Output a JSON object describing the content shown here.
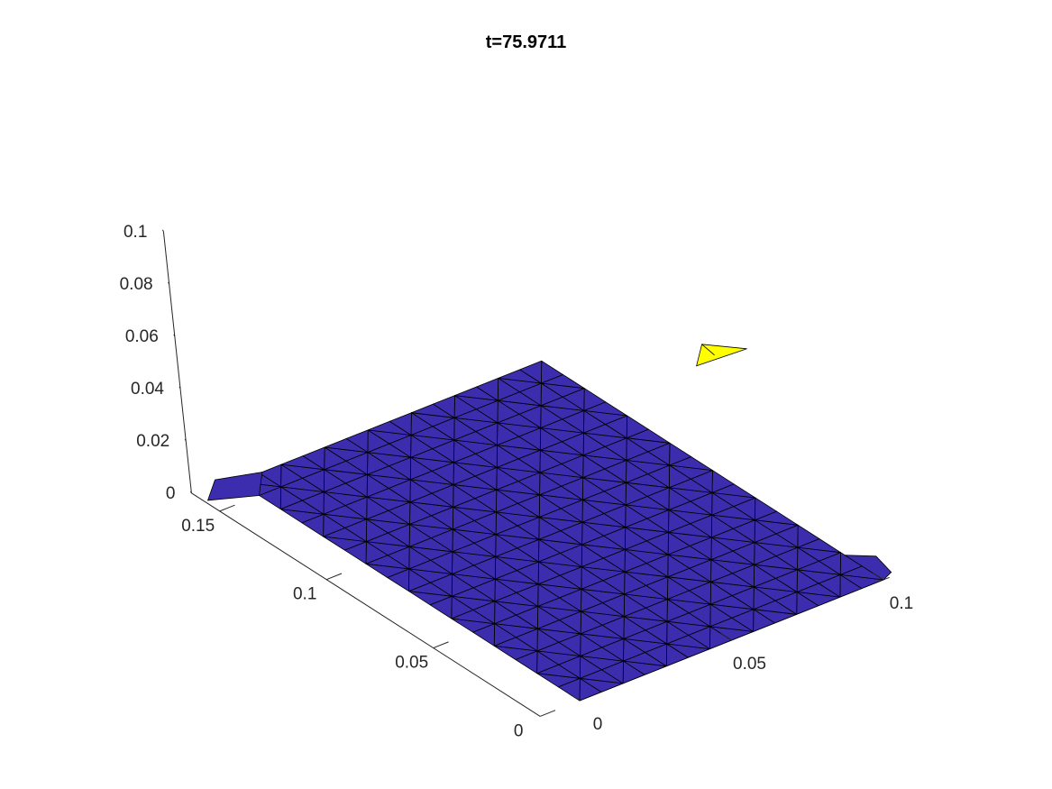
{
  "chart_data": {
    "type": "surface",
    "title": "t=75.9711",
    "xlabel": "",
    "ylabel": "",
    "zlabel": "",
    "xlim": [
      0,
      0.1
    ],
    "ylim": [
      0,
      0.16
    ],
    "zlim": [
      0,
      0.1
    ],
    "x_ticks": [
      "0",
      "0.05",
      "0.1"
    ],
    "y_ticks": [
      "0",
      "0.05",
      "0.1",
      "0.15"
    ],
    "z_ticks": [
      "0",
      "0.02",
      "0.04",
      "0.06",
      "0.08",
      "0.1"
    ],
    "grid": false,
    "mesh": "triangulated",
    "surface": {
      "z": 0,
      "x_range": [
        0,
        0.1
      ],
      "y_range": [
        0,
        0.16
      ],
      "color": "#3b2dad",
      "edge_color": "#000000"
    },
    "outlier_patch": {
      "x": 0.1,
      "y": 0.07,
      "z": 0.05,
      "color": "#ffff00"
    }
  }
}
